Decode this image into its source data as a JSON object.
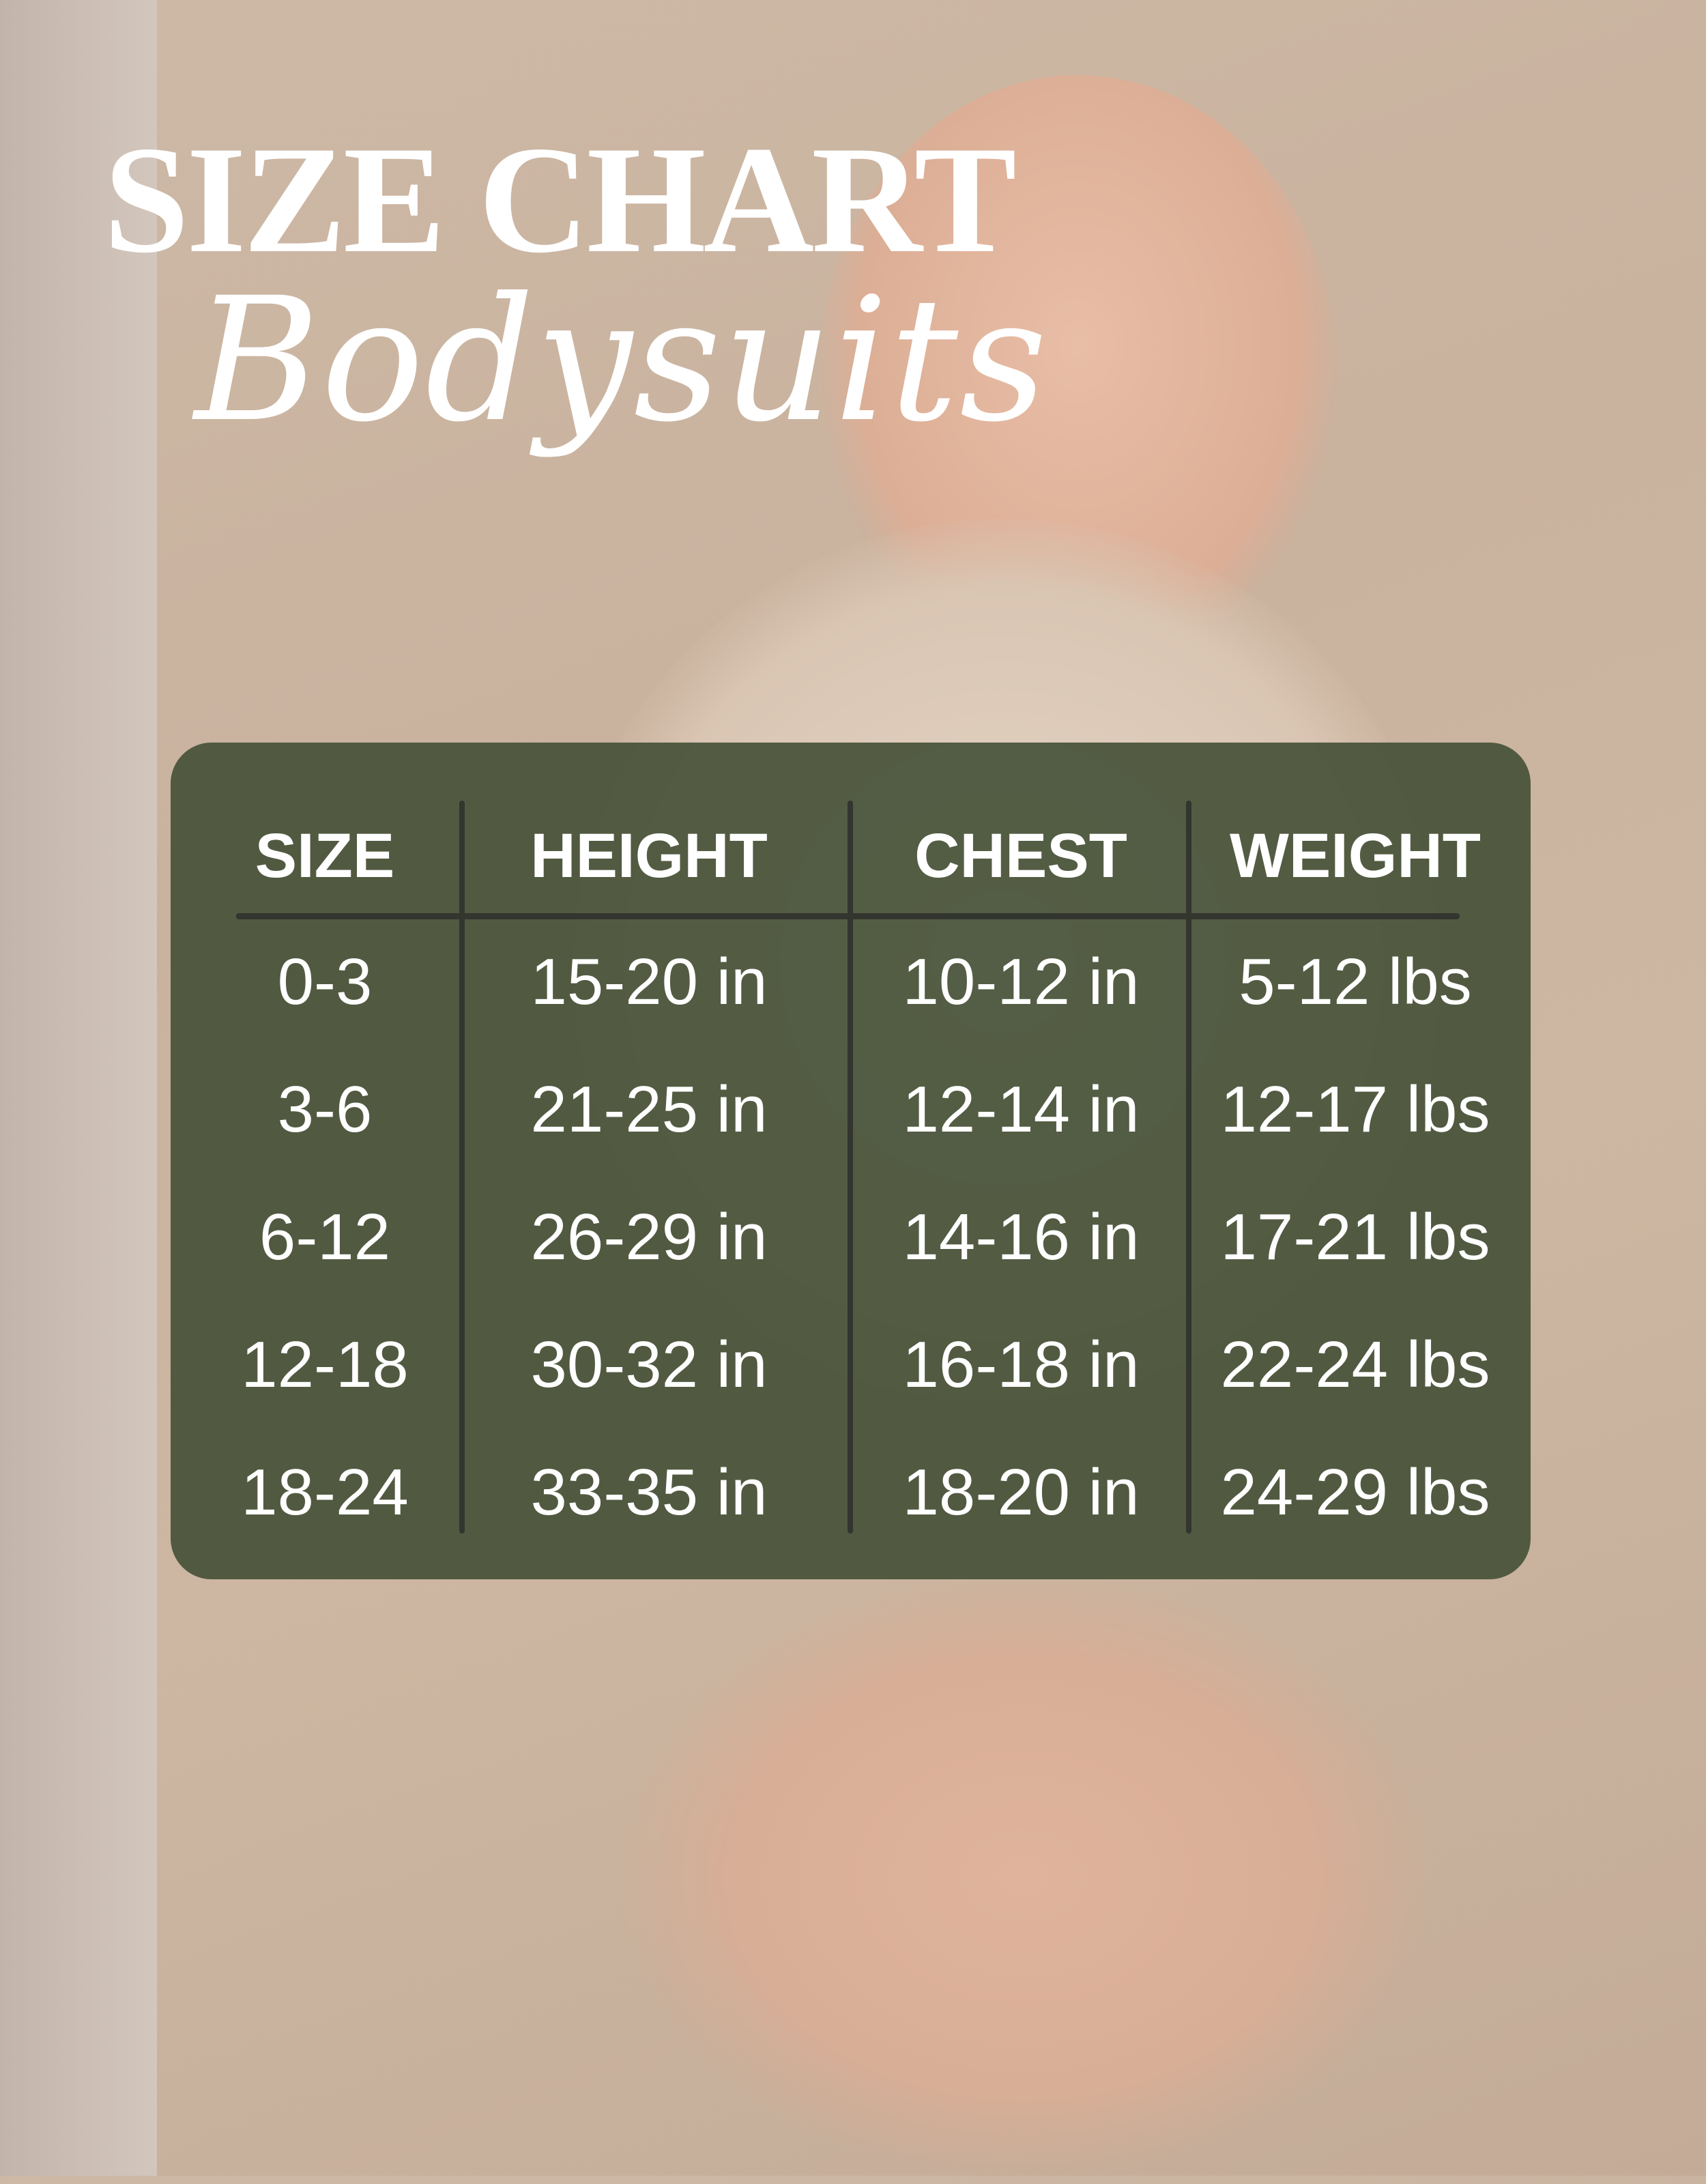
{
  "title": "SIZE CHART",
  "subtitle": "Bodysuits",
  "colors": {
    "panel": "#4f5942",
    "divider": "#33352f",
    "text": "#ffffff"
  },
  "table": {
    "headers": [
      "SIZE",
      "HEIGHT",
      "CHEST",
      "WEIGHT"
    ],
    "rows": [
      [
        "0-3",
        "15-20 in",
        "10-12 in",
        "5-12 lbs"
      ],
      [
        "3-6",
        "21-25 in",
        "12-14 in",
        "12-17 lbs"
      ],
      [
        "6-12",
        "26-29 in",
        "14-16 in",
        "17-21 lbs"
      ],
      [
        "12-18",
        "30-32 in",
        "16-18 in",
        "22-24 lbs"
      ],
      [
        "18-24",
        "33-35 in",
        "18-20 in",
        "24-29 lbs"
      ]
    ]
  }
}
